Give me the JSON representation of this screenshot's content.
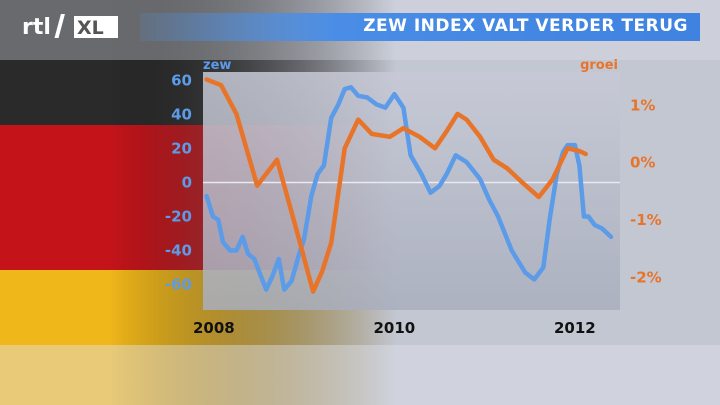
{
  "brand": {
    "logo_text": "rtl XL"
  },
  "title": "ZEW INDEX VALT VERDER TERUG",
  "colors": {
    "zew": "#5b9be8",
    "groei": "#e8742a",
    "title_bar": "#4a8de6"
  },
  "chart_data": {
    "type": "line",
    "title": "ZEW INDEX VALT VERDER TERUG",
    "x_ticks": [
      2008,
      2010,
      2012
    ],
    "xlim": [
      2007.88,
      2012.5
    ],
    "grid": false,
    "series": [
      {
        "name": "zew",
        "axis": "left",
        "ylim": [
          -75,
          65
        ],
        "y_ticks": [
          60,
          40,
          20,
          0,
          -20,
          -40,
          -60
        ],
        "x": [
          2007.92,
          2007.99,
          2008.05,
          2008.1,
          2008.18,
          2008.25,
          2008.32,
          2008.38,
          2008.45,
          2008.52,
          2008.58,
          2008.65,
          2008.72,
          2008.78,
          2008.86,
          2008.94,
          2009.0,
          2009.08,
          2009.15,
          2009.22,
          2009.3,
          2009.38,
          2009.45,
          2009.52,
          2009.6,
          2009.7,
          2009.8,
          2009.9,
          2010.0,
          2010.05,
          2010.1,
          2010.18,
          2010.3,
          2010.4,
          2010.5,
          2010.58,
          2010.68,
          2010.8,
          2010.95,
          2011.05,
          2011.15,
          2011.3,
          2011.45,
          2011.55,
          2011.65,
          2011.72,
          2011.8,
          2011.87,
          2011.92,
          2012.0,
          2012.05,
          2012.1,
          2012.15,
          2012.22,
          2012.3,
          2012.4
        ],
        "values": [
          -8,
          -20,
          -22,
          -35,
          -40,
          -40,
          -32,
          -42,
          -45,
          -55,
          -63,
          -55,
          -45,
          -63,
          -58,
          -43,
          -33,
          -8,
          5,
          10,
          38,
          46,
          55,
          56,
          51,
          50,
          46,
          44,
          52,
          48,
          44,
          16,
          5,
          -6,
          -2,
          5,
          16,
          12,
          2,
          -10,
          -20,
          -40,
          -53,
          -57,
          -50,
          -22,
          5,
          18,
          22,
          22,
          10,
          -20,
          -20,
          -25,
          -27,
          -32
        ]
      },
      {
        "name": "groei",
        "axis": "right",
        "ylim": [
          -2.57,
          1.58
        ],
        "y_ticks": [
          "1%",
          "0%",
          "-1%",
          "-2%"
        ],
        "y_tick_values": [
          1,
          0,
          -1,
          -2
        ],
        "x": [
          2007.92,
          2008.08,
          2008.25,
          2008.48,
          2008.7,
          2008.92,
          2009.1,
          2009.2,
          2009.3,
          2009.45,
          2009.6,
          2009.75,
          2009.95,
          2010.1,
          2010.28,
          2010.45,
          2010.58,
          2010.7,
          2010.8,
          2010.95,
          2011.1,
          2011.25,
          2011.42,
          2011.6,
          2011.75,
          2011.92,
          2012.05,
          2012.12
        ],
        "values": [
          1.45,
          1.35,
          0.85,
          -0.4,
          0.05,
          -1.2,
          -2.25,
          -1.9,
          -1.4,
          0.25,
          0.75,
          0.5,
          0.45,
          0.6,
          0.45,
          0.25,
          0.55,
          0.85,
          0.75,
          0.45,
          0.05,
          -0.1,
          -0.35,
          -0.6,
          -0.3,
          0.25,
          0.2,
          0.15
        ]
      }
    ]
  }
}
